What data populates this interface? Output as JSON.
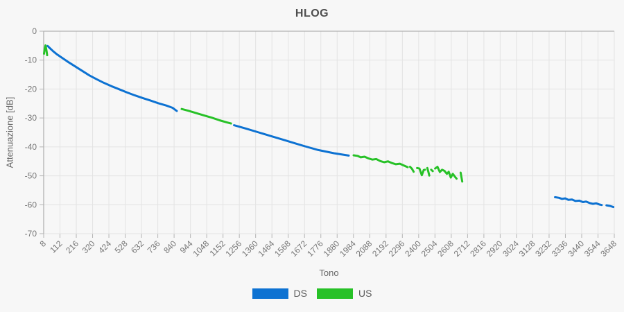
{
  "title": "HLOG",
  "colors": {
    "ds": "#0d72d2",
    "us": "#27c127",
    "grid": "#e3e3e3",
    "axis": "#b3b3b3",
    "tick_text": "#757575",
    "background": "#f7f7f7"
  },
  "chart_data": {
    "type": "line",
    "title": "HLOG",
    "xlabel": "Tono",
    "ylabel": "Attenuazione [dB]",
    "xlim": [
      8,
      3648
    ],
    "ylim": [
      -70,
      0
    ],
    "grid": true,
    "legend_position": "bottom",
    "x_ticks": [
      8,
      112,
      216,
      320,
      424,
      528,
      632,
      736,
      840,
      944,
      1048,
      1152,
      1256,
      1360,
      1464,
      1568,
      1672,
      1776,
      1880,
      1984,
      2088,
      2192,
      2296,
      2400,
      2504,
      2608,
      2712,
      2816,
      2920,
      3024,
      3128,
      3232,
      3336,
      3440,
      3544,
      3648
    ],
    "y_ticks": [
      0,
      -10,
      -20,
      -30,
      -40,
      -50,
      -60,
      -70
    ],
    "series": [
      {
        "name": "US",
        "color": "#27c127",
        "segments": [
          [
            [
              10,
              -7.8
            ],
            [
              14,
              -6.2
            ],
            [
              20,
              -4.9
            ],
            [
              26,
              -6.8
            ],
            [
              30,
              -8.3
            ]
          ],
          [
            [
              888,
              -26.9
            ],
            [
              930,
              -27.5
            ],
            [
              980,
              -28.3
            ],
            [
              1030,
              -29.1
            ],
            [
              1080,
              -29.9
            ],
            [
              1130,
              -30.8
            ],
            [
              1175,
              -31.5
            ],
            [
              1203,
              -31.9
            ]
          ],
          [
            [
              1985,
              -42.9
            ],
            [
              2010,
              -43.1
            ],
            [
              2030,
              -43.6
            ],
            [
              2055,
              -43.4
            ],
            [
              2080,
              -44.0
            ],
            [
              2105,
              -44.4
            ],
            [
              2130,
              -44.2
            ],
            [
              2155,
              -44.9
            ],
            [
              2180,
              -45.3
            ],
            [
              2205,
              -45.0
            ],
            [
              2230,
              -45.6
            ],
            [
              2255,
              -46.0
            ],
            [
              2280,
              -45.8
            ],
            [
              2305,
              -46.4
            ],
            [
              2330,
              -47.0
            ]
          ],
          [
            [
              2345,
              -46.9
            ],
            [
              2358,
              -47.6
            ],
            [
              2368,
              -48.6
            ]
          ],
          [
            [
              2390,
              -47.3
            ],
            [
              2405,
              -47.5
            ],
            [
              2420,
              -49.8
            ],
            [
              2432,
              -48.0
            ],
            [
              2440,
              -47.9
            ]
          ],
          [
            [
              2455,
              -47.3
            ],
            [
              2462,
              -48.6
            ],
            [
              2468,
              -49.9
            ]
          ],
          [
            [
              2480,
              -47.9
            ],
            [
              2490,
              -48.4
            ]
          ],
          [
            [
              2505,
              -47.5
            ],
            [
              2520,
              -46.9
            ],
            [
              2535,
              -48.7
            ],
            [
              2550,
              -47.9
            ],
            [
              2565,
              -48.3
            ],
            [
              2580,
              -49.3
            ],
            [
              2592,
              -48.6
            ],
            [
              2605,
              -50.6
            ],
            [
              2618,
              -49.3
            ],
            [
              2630,
              -50.2
            ],
            [
              2642,
              -51.0
            ]
          ],
          [
            [
              2668,
              -48.9
            ],
            [
              2674,
              -50.8
            ],
            [
              2678,
              -52.0
            ]
          ]
        ]
      },
      {
        "name": "DS",
        "color": "#0d72d2",
        "segments": [
          [
            [
              33,
              -5.1
            ],
            [
              50,
              -6.0
            ],
            [
              70,
              -7.0
            ],
            [
              95,
              -8.1
            ],
            [
              125,
              -9.2
            ],
            [
              160,
              -10.5
            ],
            [
              195,
              -11.7
            ],
            [
              230,
              -12.9
            ],
            [
              265,
              -14.1
            ],
            [
              300,
              -15.3
            ],
            [
              345,
              -16.6
            ],
            [
              390,
              -17.8
            ],
            [
              440,
              -19.0
            ],
            [
              490,
              -20.1
            ],
            [
              540,
              -21.2
            ],
            [
              590,
              -22.2
            ],
            [
              640,
              -23.1
            ],
            [
              690,
              -24.0
            ],
            [
              740,
              -24.9
            ],
            [
              790,
              -25.7
            ],
            [
              830,
              -26.5
            ],
            [
              857,
              -27.6
            ]
          ],
          [
            [
              1222,
              -32.5
            ],
            [
              1300,
              -33.7
            ],
            [
              1380,
              -35.0
            ],
            [
              1460,
              -36.3
            ],
            [
              1540,
              -37.6
            ],
            [
              1620,
              -38.9
            ],
            [
              1675,
              -39.8
            ],
            [
              1760,
              -41.1
            ],
            [
              1860,
              -42.2
            ],
            [
              1954,
              -43.0
            ]
          ],
          [
            [
              3270,
              -57.4
            ],
            [
              3295,
              -57.6
            ],
            [
              3315,
              -58.0
            ],
            [
              3335,
              -57.8
            ],
            [
              3355,
              -58.3
            ],
            [
              3378,
              -58.2
            ],
            [
              3400,
              -58.7
            ],
            [
              3425,
              -58.6
            ],
            [
              3448,
              -59.1
            ],
            [
              3468,
              -58.9
            ],
            [
              3490,
              -59.4
            ],
            [
              3512,
              -59.7
            ],
            [
              3532,
              -59.5
            ],
            [
              3552,
              -59.9
            ],
            [
              3568,
              -60.1
            ]
          ],
          [
            [
              3598,
              -60.2
            ],
            [
              3620,
              -60.4
            ],
            [
              3642,
              -60.8
            ]
          ]
        ]
      }
    ]
  }
}
